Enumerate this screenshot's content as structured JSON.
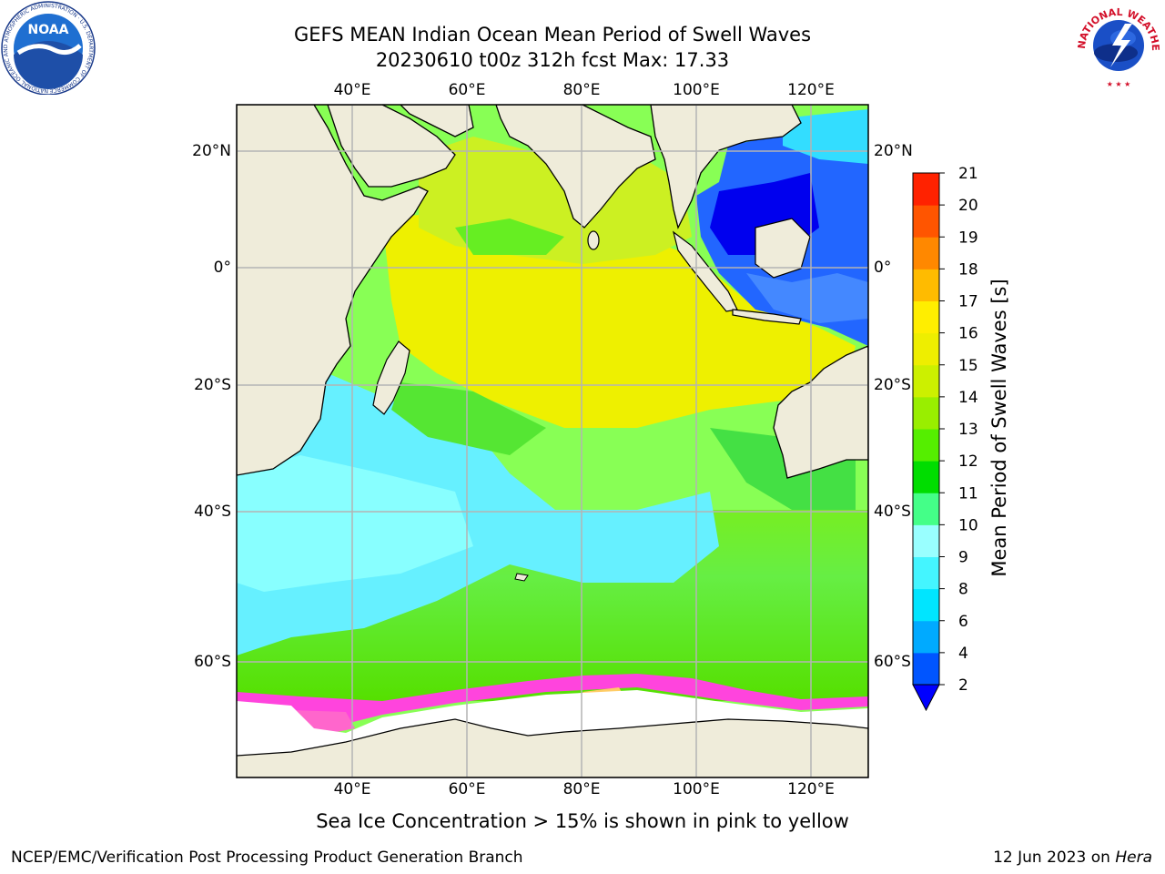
{
  "header": {
    "title": "GEFS MEAN Indian Ocean Mean Period of Swell Waves",
    "subtitle": "20230610 t00z 312h fcst   Max: 17.33"
  },
  "map": {
    "lon_ticks": [
      "40°E",
      "60°E",
      "80°E",
      "100°E",
      "120°E"
    ],
    "lat_ticks_left": [
      "20°N",
      "0°",
      "20°S",
      "40°S",
      "60°S"
    ],
    "lat_ticks_right": [
      "20°N",
      "0°",
      "20°S",
      "40°S",
      "60°S"
    ],
    "extent": {
      "lon_min": 20,
      "lon_max": 130,
      "lat_min": -74,
      "lat_max": 28
    },
    "colors": {
      "land": "#efecda",
      "ice": "#ffffff",
      "grid": "#b4b4b4"
    }
  },
  "colorbar": {
    "label": "Mean Period of Swell Waves [s]",
    "ticks": [
      "2",
      "4",
      "6",
      "8",
      "9",
      "10",
      "11",
      "12",
      "13",
      "14",
      "15",
      "16",
      "17",
      "18",
      "19",
      "20",
      "21"
    ],
    "colors": [
      "#0055ff",
      "#00aaff",
      "#00e5ff",
      "#44f5ff",
      "#99ffff",
      "#44ff88",
      "#00dd00",
      "#55ee00",
      "#99ee00",
      "#ccf000",
      "#eeee00",
      "#ffee00",
      "#ffbb00",
      "#ff8800",
      "#ff5500",
      "#ff2200",
      "#ff0000"
    ],
    "extend_color": "#0000ff"
  },
  "caption": "Sea Ice Concentration > 15% is shown in pink to yellow",
  "footer": {
    "left": "NCEP/EMC/Verification Post Processing Product Generation Branch",
    "right_date": "12 Jun 2023 on ",
    "right_host": "Hera"
  },
  "logos": {
    "noaa": "NOAA",
    "noaa_ring": "NATIONAL OCEANIC AND ATMOSPHERIC ADMINISTRATION · U.S. DEPARTMENT OF COMMERCE",
    "nws_ring": "NATIONAL WEATHER SERVICE"
  }
}
